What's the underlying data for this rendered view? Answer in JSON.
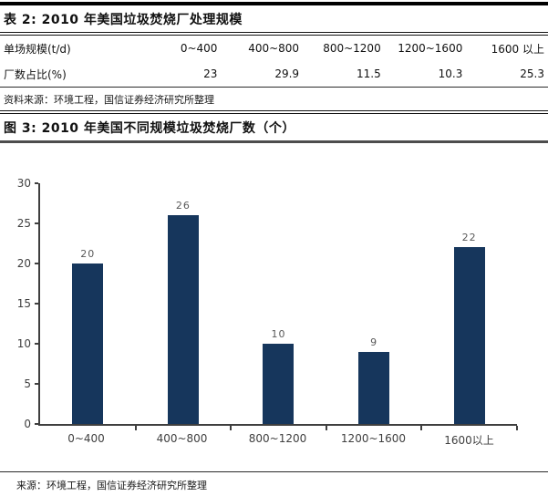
{
  "table": {
    "title": "表 2: 2010 年美国垃圾焚烧厂处理规模",
    "row1_label": "单场规模(t/d)",
    "row2_label": "厂数占比(%)",
    "columns": [
      "0~400",
      "400~800",
      "800~1200",
      "1200~1600",
      "1600 以上"
    ],
    "values": [
      "23",
      "29.9",
      "11.5",
      "10.3",
      "25.3"
    ],
    "source": "资料来源：环境工程，国信证券经济研究所整理"
  },
  "figure": {
    "title": "图 3: 2010 年美国不同规模垃圾焚烧厂数（个）",
    "source": "来源：环境工程，国信证券经济研究所整理"
  },
  "chart_data": {
    "type": "bar",
    "title": "2010 年美国不同规模垃圾焚烧厂数（个）",
    "categories": [
      "0~400",
      "400~800",
      "800~1200",
      "1200~1600",
      "1600以上"
    ],
    "values": [
      20,
      26,
      10,
      9,
      22
    ],
    "xlabel": "",
    "ylabel": "",
    "ylim": [
      0,
      30
    ],
    "yticks": [
      0,
      5,
      10,
      15,
      20,
      25,
      30
    ],
    "grid": false,
    "legend": "none",
    "bar_color": "#16365C",
    "value_label_color": "#595959",
    "axis_color": "#3f3f3f"
  }
}
